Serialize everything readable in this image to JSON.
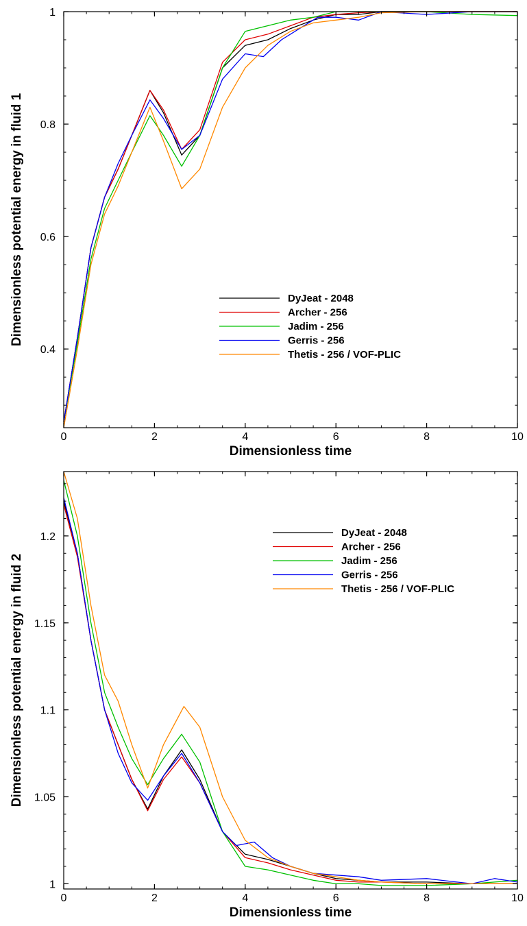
{
  "chart_data": [
    {
      "type": "line",
      "title": "",
      "xlabel": "Dimensionless time",
      "ylabel": "Dimensionless potential energy in fluid 1",
      "xlim": [
        0,
        10
      ],
      "ylim": [
        0.26,
        1.0
      ],
      "xticks": [
        "0",
        "2",
        "4",
        "6",
        "8",
        "10"
      ],
      "yticks": [
        {
          "value": 0.4,
          "label": "0.4"
        },
        {
          "value": 0.6,
          "label": "0.6"
        },
        {
          "value": 0.8,
          "label": "0.8"
        },
        {
          "value": 1.0,
          "label": "1"
        }
      ],
      "grid": false,
      "legend_position": "lower-right",
      "series": [
        {
          "name": "DyJeat - 2048",
          "color": "#000000",
          "x": [
            0,
            0.3,
            0.6,
            0.9,
            1.2,
            1.5,
            1.9,
            2.2,
            2.6,
            3.0,
            3.5,
            4.0,
            4.5,
            5.0,
            5.5,
            6.0,
            6.5,
            7.0,
            8.0,
            9.0,
            10.0
          ],
          "y": [
            0.27,
            0.42,
            0.58,
            0.67,
            0.72,
            0.78,
            0.86,
            0.82,
            0.745,
            0.78,
            0.9,
            0.94,
            0.95,
            0.97,
            0.985,
            0.995,
            0.995,
            1.0,
            1.0,
            1.0,
            1.0
          ]
        },
        {
          "name": "Archer - 256",
          "color": "#e00000",
          "x": [
            0,
            0.3,
            0.6,
            0.9,
            1.2,
            1.5,
            1.9,
            2.2,
            2.6,
            3.0,
            3.5,
            4.0,
            4.5,
            5.0,
            5.5,
            6.0,
            6.5,
            7.0,
            8.0,
            9.0,
            10.0
          ],
          "y": [
            0.27,
            0.42,
            0.58,
            0.67,
            0.72,
            0.78,
            0.86,
            0.825,
            0.755,
            0.79,
            0.91,
            0.95,
            0.96,
            0.975,
            0.99,
            0.995,
            0.998,
            1.0,
            1.0,
            1.0,
            1.0
          ]
        },
        {
          "name": "Jadim - 256",
          "color": "#00c000",
          "x": [
            0,
            0.3,
            0.6,
            0.9,
            1.2,
            1.5,
            1.9,
            2.2,
            2.6,
            3.0,
            3.5,
            4.0,
            4.5,
            5.0,
            5.5,
            6.0,
            6.5,
            7.0,
            8.0,
            9.0,
            10.0
          ],
          "y": [
            0.27,
            0.41,
            0.56,
            0.65,
            0.7,
            0.75,
            0.815,
            0.78,
            0.725,
            0.78,
            0.9,
            0.965,
            0.975,
            0.985,
            0.99,
            1.0,
            1.0,
            1.0,
            1.0,
            0.995,
            0.993
          ]
        },
        {
          "name": "Gerris - 256",
          "color": "#0000f0",
          "x": [
            0,
            0.3,
            0.6,
            0.9,
            1.2,
            1.5,
            1.9,
            2.2,
            2.6,
            3.0,
            3.5,
            4.0,
            4.4,
            4.8,
            5.2,
            5.6,
            6.0,
            6.5,
            7.0,
            8.0,
            9.0,
            10.0
          ],
          "y": [
            0.27,
            0.42,
            0.58,
            0.67,
            0.73,
            0.78,
            0.843,
            0.81,
            0.755,
            0.78,
            0.88,
            0.925,
            0.92,
            0.95,
            0.97,
            0.99,
            0.99,
            0.985,
            1.0,
            0.995,
            1.0,
            1.0
          ]
        },
        {
          "name": "Thetis - 256 / VOF-PLIC",
          "color": "#ff8800",
          "x": [
            0,
            0.3,
            0.6,
            0.9,
            1.2,
            1.5,
            1.9,
            2.2,
            2.6,
            3.0,
            3.5,
            4.0,
            4.5,
            5.0,
            5.5,
            6.0,
            6.5,
            7.0,
            8.0,
            9.0,
            10.0
          ],
          "y": [
            0.26,
            0.4,
            0.55,
            0.64,
            0.69,
            0.75,
            0.83,
            0.77,
            0.685,
            0.72,
            0.83,
            0.9,
            0.94,
            0.965,
            0.98,
            0.985,
            0.99,
            0.998,
            1.0,
            1.0,
            1.0
          ]
        }
      ]
    },
    {
      "type": "line",
      "title": "",
      "xlabel": "Dimensionless time",
      "ylabel": "Dimensionless potential energy in fluid 2",
      "xlim": [
        0,
        10
      ],
      "ylim": [
        0.997,
        1.237
      ],
      "xticks": [
        "0",
        "2",
        "4",
        "6",
        "8",
        "10"
      ],
      "yticks": [
        {
          "value": 1.0,
          "label": "1"
        },
        {
          "value": 1.05,
          "label": "1.05"
        },
        {
          "value": 1.1,
          "label": "1.1"
        },
        {
          "value": 1.15,
          "label": "1.15"
        },
        {
          "value": 1.2,
          "label": "1.2"
        }
      ],
      "grid": false,
      "legend_position": "lower-right",
      "series": [
        {
          "name": "DyJeat - 2048",
          "color": "#000000",
          "x": [
            0,
            0.3,
            0.6,
            0.9,
            1.2,
            1.5,
            1.85,
            2.2,
            2.6,
            3.0,
            3.5,
            4.0,
            4.5,
            5.0,
            5.5,
            6.0,
            6.5,
            7.0,
            8.0,
            9.0,
            10.0
          ],
          "y": [
            1.22,
            1.19,
            1.14,
            1.1,
            1.08,
            1.06,
            1.043,
            1.062,
            1.077,
            1.06,
            1.03,
            1.017,
            1.014,
            1.01,
            1.006,
            1.003,
            1.002,
            1.001,
            1.001,
            1.0,
            1.0
          ]
        },
        {
          "name": "Archer - 256",
          "color": "#e00000",
          "x": [
            0,
            0.3,
            0.6,
            0.9,
            1.2,
            1.5,
            1.85,
            2.2,
            2.6,
            3.0,
            3.5,
            4.0,
            4.5,
            5.0,
            5.5,
            6.0,
            6.5,
            7.0,
            8.0,
            9.0,
            10.0
          ],
          "y": [
            1.218,
            1.188,
            1.14,
            1.1,
            1.08,
            1.06,
            1.042,
            1.06,
            1.073,
            1.058,
            1.03,
            1.015,
            1.012,
            1.008,
            1.005,
            1.002,
            1.001,
            1.001,
            1.0,
            1.0,
            1.0
          ]
        },
        {
          "name": "Jadim - 256",
          "color": "#00c000",
          "x": [
            0,
            0.3,
            0.6,
            0.9,
            1.2,
            1.5,
            1.85,
            2.2,
            2.6,
            3.0,
            3.5,
            4.0,
            4.5,
            5.0,
            5.5,
            6.0,
            6.5,
            7.0,
            8.0,
            9.0,
            10.0
          ],
          "y": [
            1.232,
            1.2,
            1.15,
            1.11,
            1.09,
            1.072,
            1.057,
            1.072,
            1.086,
            1.07,
            1.03,
            1.01,
            1.008,
            1.005,
            1.002,
            1.0,
            1.0,
            0.999,
            0.999,
            1.0,
            1.002
          ]
        },
        {
          "name": "Gerris - 256",
          "color": "#0000f0",
          "x": [
            0,
            0.3,
            0.6,
            0.9,
            1.2,
            1.5,
            1.85,
            2.2,
            2.6,
            3.0,
            3.5,
            3.8,
            4.2,
            4.6,
            5.0,
            5.5,
            6.0,
            6.5,
            7.0,
            8.0,
            9.0,
            9.5,
            10.0
          ],
          "y": [
            1.222,
            1.19,
            1.14,
            1.1,
            1.075,
            1.058,
            1.048,
            1.062,
            1.075,
            1.058,
            1.03,
            1.022,
            1.024,
            1.015,
            1.01,
            1.006,
            1.005,
            1.004,
            1.002,
            1.003,
            1.0,
            1.003,
            1.001
          ]
        },
        {
          "name": "Thetis - 256 / VOF-PLIC",
          "color": "#ff8800",
          "x": [
            0,
            0.3,
            0.6,
            0.9,
            1.2,
            1.5,
            1.85,
            2.2,
            2.65,
            3.0,
            3.5,
            4.0,
            4.5,
            5.0,
            5.5,
            6.0,
            6.5,
            7.0,
            8.0,
            9.0,
            10.0
          ],
          "y": [
            1.237,
            1.21,
            1.16,
            1.12,
            1.105,
            1.08,
            1.055,
            1.08,
            1.102,
            1.09,
            1.05,
            1.025,
            1.015,
            1.01,
            1.006,
            1.004,
            1.002,
            1.001,
            1.0,
            1.0,
            1.0
          ]
        }
      ]
    }
  ]
}
